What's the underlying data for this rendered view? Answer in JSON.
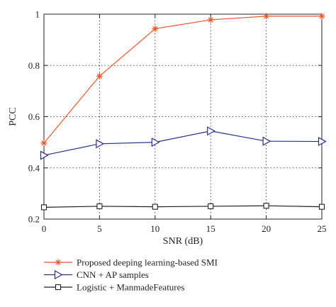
{
  "chart_data": {
    "type": "line",
    "title": "",
    "xlabel": "SNR (dB)",
    "ylabel": "PCC",
    "x": [
      0,
      5,
      10,
      15,
      20,
      25
    ],
    "xlim": [
      0,
      25
    ],
    "ylim": [
      0.2,
      1.0
    ],
    "xticks": [
      "0",
      "5",
      "10",
      "15",
      "20",
      "25"
    ],
    "yticks": [
      "0.2",
      "0.4",
      "0.6",
      "0.8",
      "1"
    ],
    "grid": true,
    "legend_position": "bottom-outside",
    "series": [
      {
        "name": "Proposed deeping learning-based SMI",
        "values": [
          0.497,
          0.758,
          0.943,
          0.978,
          0.992,
          0.992
        ],
        "color": "#e8562a",
        "marker": "asterisk"
      },
      {
        "name": "CNN + AP samples",
        "values": [
          0.449,
          0.494,
          0.5,
          0.544,
          0.504,
          0.503
        ],
        "color": "#2b2f8f",
        "marker": "triangle-right"
      },
      {
        "name": "Logistic + ManmadeFeatures",
        "values": [
          0.246,
          0.25,
          0.248,
          0.25,
          0.252,
          0.248
        ],
        "color": "#231f20",
        "marker": "square"
      }
    ]
  }
}
